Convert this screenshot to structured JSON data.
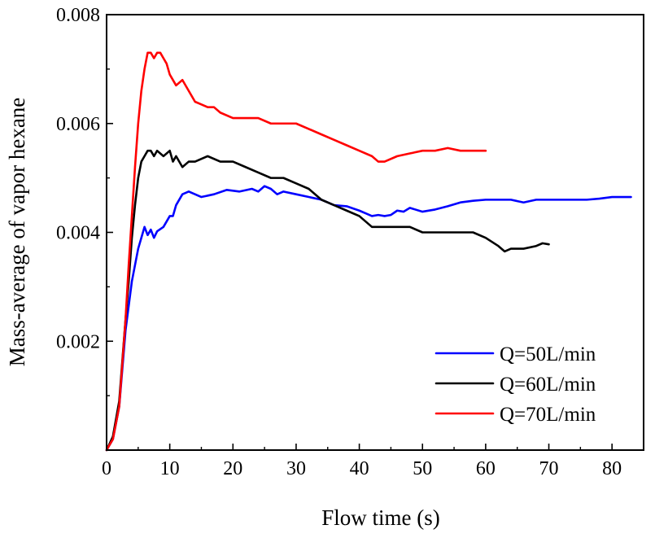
{
  "chart_data": {
    "type": "line",
    "title": "",
    "xlabel": "Flow time (s)",
    "ylabel": "Mass-average of vapor hexane",
    "xlim": [
      0,
      85
    ],
    "ylim": [
      0,
      0.008
    ],
    "xticks": [
      0,
      10,
      20,
      30,
      40,
      50,
      60,
      70,
      80
    ],
    "xtick_labels": [
      "0",
      "10",
      "20",
      "30",
      "40",
      "50",
      "60",
      "70",
      "80"
    ],
    "yticks": [
      0.002,
      0.004,
      0.006,
      0.008
    ],
    "ytick_labels": [
      "0.002",
      "0.004",
      "0.006",
      "0.008"
    ],
    "grid": false,
    "legend_position": "bottom-right",
    "series": [
      {
        "name": "Q=50L/min",
        "color": "#0000ff",
        "x": [
          0,
          1,
          2,
          3,
          4,
          5,
          5.5,
          6,
          6.5,
          7,
          7.5,
          8,
          9,
          10,
          10.5,
          11,
          12,
          13,
          15,
          17,
          19,
          21,
          23,
          24,
          25,
          26,
          27,
          28,
          30,
          32,
          34,
          35,
          36,
          38,
          40,
          41,
          42,
          43,
          44,
          45,
          46,
          47,
          48,
          50,
          52,
          54,
          56,
          58,
          60,
          62,
          64,
          66,
          68,
          70,
          72,
          74,
          76,
          78,
          80,
          82,
          83
        ],
        "values": [
          0.0,
          0.0002,
          0.0008,
          0.0022,
          0.0031,
          0.0037,
          0.0039,
          0.0041,
          0.00395,
          0.00405,
          0.0039,
          0.00402,
          0.0041,
          0.0043,
          0.0043,
          0.0045,
          0.0047,
          0.00475,
          0.00465,
          0.0047,
          0.00478,
          0.00475,
          0.0048,
          0.00475,
          0.00485,
          0.0048,
          0.0047,
          0.00475,
          0.0047,
          0.00465,
          0.0046,
          0.00455,
          0.0045,
          0.00448,
          0.0044,
          0.00435,
          0.0043,
          0.00432,
          0.0043,
          0.00432,
          0.0044,
          0.00438,
          0.00445,
          0.00438,
          0.00442,
          0.00448,
          0.00455,
          0.00458,
          0.0046,
          0.0046,
          0.0046,
          0.00455,
          0.0046,
          0.0046,
          0.0046,
          0.0046,
          0.0046,
          0.00462,
          0.00465,
          0.00465,
          0.00465
        ]
      },
      {
        "name": "Q=60L/min",
        "color": "#000000",
        "x": [
          0,
          1,
          2,
          3,
          3.5,
          4,
          4.5,
          5,
          5.5,
          6,
          6.5,
          7,
          7.5,
          8,
          9,
          10,
          10.5,
          11,
          12,
          13,
          14,
          16,
          18,
          20,
          22,
          24,
          26,
          28,
          30,
          32,
          34,
          36,
          38,
          40,
          42,
          44,
          46,
          48,
          50,
          52,
          54,
          56,
          58,
          60,
          62,
          63,
          64,
          66,
          68,
          69,
          70
        ],
        "values": [
          0.0,
          0.00025,
          0.0009,
          0.0024,
          0.0031,
          0.0039,
          0.0045,
          0.005,
          0.0053,
          0.0054,
          0.0055,
          0.0055,
          0.0054,
          0.0055,
          0.0054,
          0.0055,
          0.0053,
          0.0054,
          0.0052,
          0.0053,
          0.0053,
          0.0054,
          0.0053,
          0.0053,
          0.0052,
          0.0051,
          0.005,
          0.005,
          0.0049,
          0.0048,
          0.0046,
          0.0045,
          0.0044,
          0.0043,
          0.0041,
          0.0041,
          0.0041,
          0.0041,
          0.004,
          0.004,
          0.004,
          0.004,
          0.004,
          0.0039,
          0.00375,
          0.00365,
          0.0037,
          0.0037,
          0.00375,
          0.0038,
          0.00378
        ]
      },
      {
        "name": "Q=70L/min",
        "color": "#ff0000",
        "x": [
          0,
          1,
          2,
          3,
          3.5,
          4,
          4.5,
          5,
          5.5,
          6,
          6.5,
          7,
          7.5,
          8,
          8.5,
          9,
          9.5,
          10,
          11,
          12,
          13,
          14,
          15,
          16,
          17,
          18,
          20,
          22,
          24,
          26,
          28,
          30,
          32,
          34,
          36,
          38,
          40,
          42,
          43,
          44,
          46,
          48,
          50,
          52,
          54,
          56,
          58,
          60
        ],
        "values": [
          0.0,
          0.0002,
          0.0008,
          0.0024,
          0.0034,
          0.0043,
          0.0052,
          0.006,
          0.0066,
          0.007,
          0.0073,
          0.0073,
          0.0072,
          0.0073,
          0.0073,
          0.0072,
          0.0071,
          0.0069,
          0.0067,
          0.0068,
          0.0066,
          0.0064,
          0.00635,
          0.0063,
          0.0063,
          0.0062,
          0.0061,
          0.0061,
          0.0061,
          0.006,
          0.006,
          0.006,
          0.0059,
          0.0058,
          0.0057,
          0.0056,
          0.0055,
          0.0054,
          0.0053,
          0.0053,
          0.0054,
          0.00545,
          0.0055,
          0.0055,
          0.00555,
          0.0055,
          0.0055,
          0.0055
        ]
      }
    ]
  }
}
